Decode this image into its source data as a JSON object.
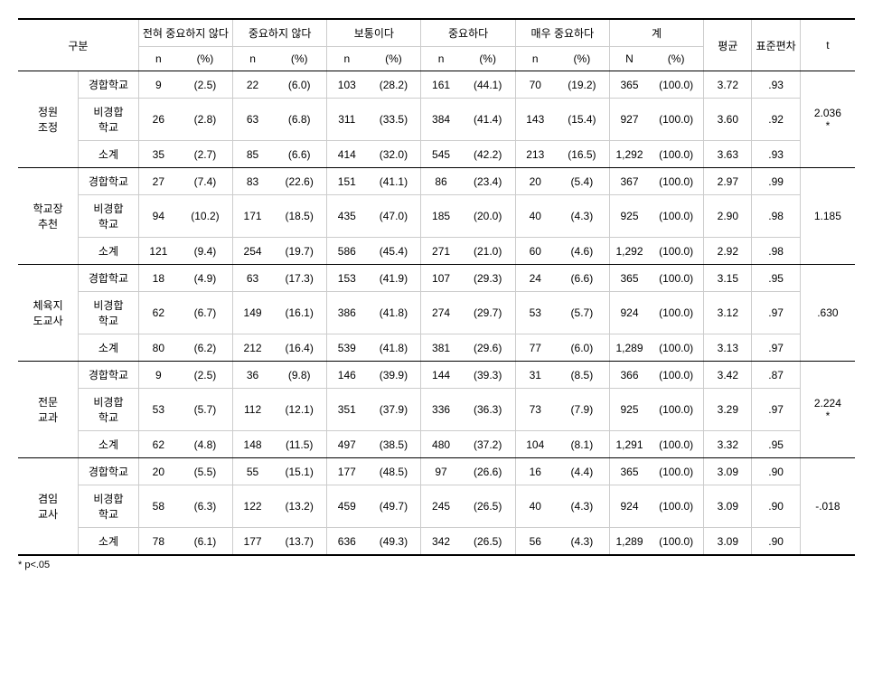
{
  "headers": {
    "gubun": "구분",
    "scale1": "전혀 중요하지 않다",
    "scale2": "중요하지 않다",
    "scale3": "보통이다",
    "scale4": "중요하다",
    "scale5": "매우 중요하다",
    "total": "계",
    "mean": "평균",
    "std": "표준편차",
    "t": "t",
    "n": "n",
    "N": "N",
    "pct": "(%)"
  },
  "categories": {
    "0": "정원조정",
    "1": "학교장추천",
    "2": "체육지도교사",
    "3": "전문교과",
    "4": "겸임교사"
  },
  "subcat": {
    "0": "경합학교",
    "1": "비경합학교",
    "2": "소계"
  },
  "data": {
    "0": {
      "0": {
        "n1": "9",
        "p1": "(2.5)",
        "n2": "22",
        "p2": "(6.0)",
        "n3": "103",
        "p3": "(28.2)",
        "n4": "161",
        "p4": "(44.1)",
        "n5": "70",
        "p5": "(19.2)",
        "nt": "365",
        "pt": "(100.0)",
        "m": "3.72",
        "s": ".93"
      },
      "1": {
        "n1": "26",
        "p1": "(2.8)",
        "n2": "63",
        "p2": "(6.8)",
        "n3": "311",
        "p3": "(33.5)",
        "n4": "384",
        "p4": "(41.4)",
        "n5": "143",
        "p5": "(15.4)",
        "nt": "927",
        "pt": "(100.0)",
        "m": "3.60",
        "s": ".92"
      },
      "2": {
        "n1": "35",
        "p1": "(2.7)",
        "n2": "85",
        "p2": "(6.6)",
        "n3": "414",
        "p3": "(32.0)",
        "n4": "545",
        "p4": "(42.2)",
        "n5": "213",
        "p5": "(16.5)",
        "nt": "1,292",
        "pt": "(100.0)",
        "m": "3.63",
        "s": ".93"
      },
      "t": "2.036*"
    },
    "1": {
      "0": {
        "n1": "27",
        "p1": "(7.4)",
        "n2": "83",
        "p2": "(22.6)",
        "n3": "151",
        "p3": "(41.1)",
        "n4": "86",
        "p4": "(23.4)",
        "n5": "20",
        "p5": "(5.4)",
        "nt": "367",
        "pt": "(100.0)",
        "m": "2.97",
        "s": ".99"
      },
      "1": {
        "n1": "94",
        "p1": "(10.2)",
        "n2": "171",
        "p2": "(18.5)",
        "n3": "435",
        "p3": "(47.0)",
        "n4": "185",
        "p4": "(20.0)",
        "n5": "40",
        "p5": "(4.3)",
        "nt": "925",
        "pt": "(100.0)",
        "m": "2.90",
        "s": ".98"
      },
      "2": {
        "n1": "121",
        "p1": "(9.4)",
        "n2": "254",
        "p2": "(19.7)",
        "n3": "586",
        "p3": "(45.4)",
        "n4": "271",
        "p4": "(21.0)",
        "n5": "60",
        "p5": "(4.6)",
        "nt": "1,292",
        "pt": "(100.0)",
        "m": "2.92",
        "s": ".98"
      },
      "t": "1.185"
    },
    "2": {
      "0": {
        "n1": "18",
        "p1": "(4.9)",
        "n2": "63",
        "p2": "(17.3)",
        "n3": "153",
        "p3": "(41.9)",
        "n4": "107",
        "p4": "(29.3)",
        "n5": "24",
        "p5": "(6.6)",
        "nt": "365",
        "pt": "(100.0)",
        "m": "3.15",
        "s": ".95"
      },
      "1": {
        "n1": "62",
        "p1": "(6.7)",
        "n2": "149",
        "p2": "(16.1)",
        "n3": "386",
        "p3": "(41.8)",
        "n4": "274",
        "p4": "(29.7)",
        "n5": "53",
        "p5": "(5.7)",
        "nt": "924",
        "pt": "(100.0)",
        "m": "3.12",
        "s": ".97"
      },
      "2": {
        "n1": "80",
        "p1": "(6.2)",
        "n2": "212",
        "p2": "(16.4)",
        "n3": "539",
        "p3": "(41.8)",
        "n4": "381",
        "p4": "(29.6)",
        "n5": "77",
        "p5": "(6.0)",
        "nt": "1,289",
        "pt": "(100.0)",
        "m": "3.13",
        "s": ".97"
      },
      "t": ".630"
    },
    "3": {
      "0": {
        "n1": "9",
        "p1": "(2.5)",
        "n2": "36",
        "p2": "(9.8)",
        "n3": "146",
        "p3": "(39.9)",
        "n4": "144",
        "p4": "(39.3)",
        "n5": "31",
        "p5": "(8.5)",
        "nt": "366",
        "pt": "(100.0)",
        "m": "3.42",
        "s": ".87"
      },
      "1": {
        "n1": "53",
        "p1": "(5.7)",
        "n2": "112",
        "p2": "(12.1)",
        "n3": "351",
        "p3": "(37.9)",
        "n4": "336",
        "p4": "(36.3)",
        "n5": "73",
        "p5": "(7.9)",
        "nt": "925",
        "pt": "(100.0)",
        "m": "3.29",
        "s": ".97"
      },
      "2": {
        "n1": "62",
        "p1": "(4.8)",
        "n2": "148",
        "p2": "(11.5)",
        "n3": "497",
        "p3": "(38.5)",
        "n4": "480",
        "p4": "(37.2)",
        "n5": "104",
        "p5": "(8.1)",
        "nt": "1,291",
        "pt": "(100.0)",
        "m": "3.32",
        "s": ".95"
      },
      "t": "2.224*"
    },
    "4": {
      "0": {
        "n1": "20",
        "p1": "(5.5)",
        "n2": "55",
        "p2": "(15.1)",
        "n3": "177",
        "p3": "(48.5)",
        "n4": "97",
        "p4": "(26.6)",
        "n5": "16",
        "p5": "(4.4)",
        "nt": "365",
        "pt": "(100.0)",
        "m": "3.09",
        "s": ".90"
      },
      "1": {
        "n1": "58",
        "p1": "(6.3)",
        "n2": "122",
        "p2": "(13.2)",
        "n3": "459",
        "p3": "(49.7)",
        "n4": "245",
        "p4": "(26.5)",
        "n5": "40",
        "p5": "(4.3)",
        "nt": "924",
        "pt": "(100.0)",
        "m": "3.09",
        "s": ".90"
      },
      "2": {
        "n1": "78",
        "p1": "(6.1)",
        "n2": "177",
        "p2": "(13.7)",
        "n3": "636",
        "p3": "(49.3)",
        "n4": "342",
        "p4": "(26.5)",
        "n5": "56",
        "p5": "(4.3)",
        "nt": "1,289",
        "pt": "(100.0)",
        "m": "3.09",
        "s": ".90"
      },
      "t": "-.018"
    }
  },
  "footnote": "* p<.05"
}
